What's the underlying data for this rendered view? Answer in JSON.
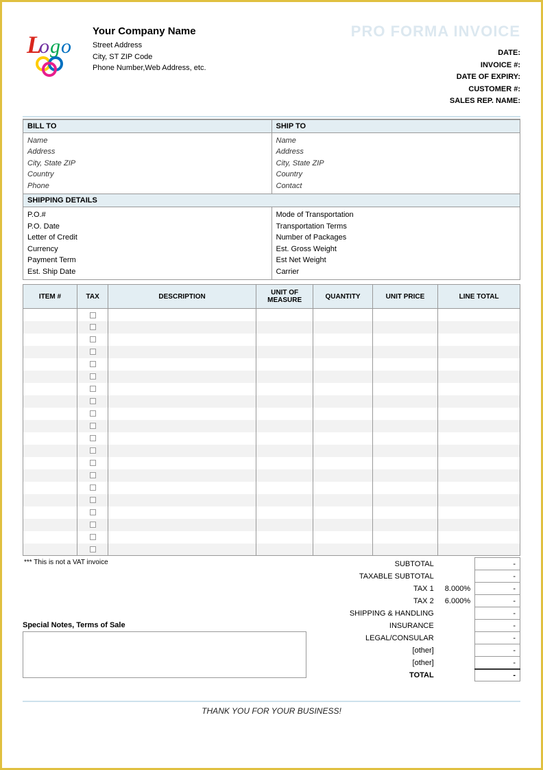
{
  "colors": {
    "page_border": "#e0c040",
    "section_header_bg": "#e3eef3",
    "rule_blue": "#cde1ec",
    "row_alt_bg": "#f2f2f2",
    "border": "#999999",
    "title_watermark": "#dce8f0"
  },
  "header": {
    "logo_text": "Logo",
    "company_name": "Your Company Name",
    "street": "Street Address",
    "city_line": "City, ST  ZIP Code",
    "phone_line": "Phone Number,Web Address, etc.",
    "invoice_title": "PRO FORMA INVOICE",
    "meta": [
      "DATE:",
      "INVOICE #:",
      "DATE OF EXPIRY:",
      "CUSTOMER #:",
      "SALES REP. NAME:"
    ]
  },
  "bill_to": {
    "heading": "BILL TO",
    "fields": [
      "Name",
      "Address",
      "City, State ZIP",
      "Country",
      "Phone"
    ]
  },
  "ship_to": {
    "heading": "SHIP TO",
    "fields": [
      "Name",
      "Address",
      "City, State ZIP",
      "Country",
      "Contact"
    ]
  },
  "shipping_details": {
    "heading": "SHIPPING DETAILS",
    "left": [
      "P.O.#",
      "P.O. Date",
      "Letter of Credit",
      "Currency",
      "Payment Term",
      "Est. Ship Date"
    ],
    "right": [
      "Mode of Transportation",
      "Transportation Terms",
      "Number of Packages",
      "Est. Gross Weight",
      "Est Net Weight",
      "Carrier"
    ]
  },
  "items_table": {
    "columns": [
      "ITEM #",
      "TAX",
      "DESCRIPTION",
      "UNIT OF MEASURE",
      "QUANTITY",
      "UNIT PRICE",
      "LINE TOTAL"
    ],
    "row_count": 20
  },
  "vat_note": "*** This is not a VAT invoice",
  "special_notes_label": "Special Notes, Terms of Sale",
  "totals": {
    "rows": [
      {
        "label": "SUBTOTAL",
        "rate": "",
        "amount": "-"
      },
      {
        "label": "TAXABLE SUBTOTAL",
        "rate": "",
        "amount": "-"
      },
      {
        "label": "TAX 1",
        "rate": "8.000%",
        "amount": "-"
      },
      {
        "label": "TAX 2",
        "rate": "6.000%",
        "amount": "-"
      },
      {
        "label": "SHIPPING & HANDLING",
        "rate": "",
        "amount": "-"
      },
      {
        "label": "INSURANCE",
        "rate": "",
        "amount": "-"
      },
      {
        "label": "LEGAL/CONSULAR",
        "rate": "",
        "amount": "-"
      },
      {
        "label": "[other]",
        "rate": "",
        "amount": "-"
      },
      {
        "label": "[other]",
        "rate": "",
        "amount": "-"
      }
    ],
    "total_label": "TOTAL",
    "total_amount": "-"
  },
  "thank_you": "THANK YOU FOR YOUR BUSINESS!"
}
